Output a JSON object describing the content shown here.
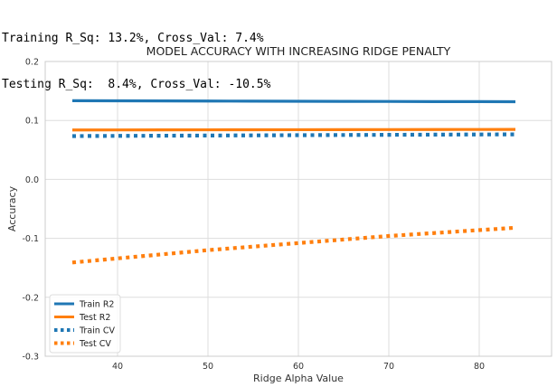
{
  "console": {
    "line1": "Training R_Sq: 13.2%, Cross_Val: 7.4%",
    "line2": "Testing R_Sq:  8.4%, Cross_Val: -10.5%"
  },
  "chart_data": {
    "type": "line",
    "title": "MODEL ACCURACY WITH INCREASING RIDGE PENALTY",
    "xlabel": "Ridge Alpha Value",
    "ylabel": "Accuracy",
    "xlim": [
      32,
      88
    ],
    "ylim": [
      -0.3,
      0.2
    ],
    "xticks": [
      40,
      50,
      60,
      70,
      80
    ],
    "yticks": [
      -0.3,
      -0.2,
      -0.1,
      0.0,
      0.1,
      0.2
    ],
    "grid": true,
    "legend_position": "lower-left",
    "x": [
      35,
      40,
      45,
      50,
      55,
      60,
      65,
      70,
      75,
      80,
      84
    ],
    "series": [
      {
        "name": "Train R2",
        "color": "#1f77b4",
        "style": "solid",
        "values": [
          0.1335,
          0.1333,
          0.1331,
          0.1329,
          0.1327,
          0.1325,
          0.1323,
          0.1322,
          0.132,
          0.1319,
          0.1318
        ]
      },
      {
        "name": "Test R2",
        "color": "#ff7f0e",
        "style": "solid",
        "values": [
          0.0838,
          0.0839,
          0.084,
          0.0841,
          0.0842,
          0.0843,
          0.0844,
          0.0845,
          0.0846,
          0.0847,
          0.0848
        ]
      },
      {
        "name": "Train CV",
        "color": "#1f77b4",
        "style": "dotted",
        "values": [
          0.0735,
          0.0738,
          0.0741,
          0.0744,
          0.0747,
          0.075,
          0.0753,
          0.0756,
          0.0759,
          0.0762,
          0.0764
        ]
      },
      {
        "name": "Test CV",
        "color": "#ff7f0e",
        "style": "dotted",
        "values": [
          -0.141,
          -0.134,
          -0.127,
          -0.12,
          -0.114,
          -0.108,
          -0.102,
          -0.096,
          -0.091,
          -0.086,
          -0.082
        ]
      }
    ]
  }
}
